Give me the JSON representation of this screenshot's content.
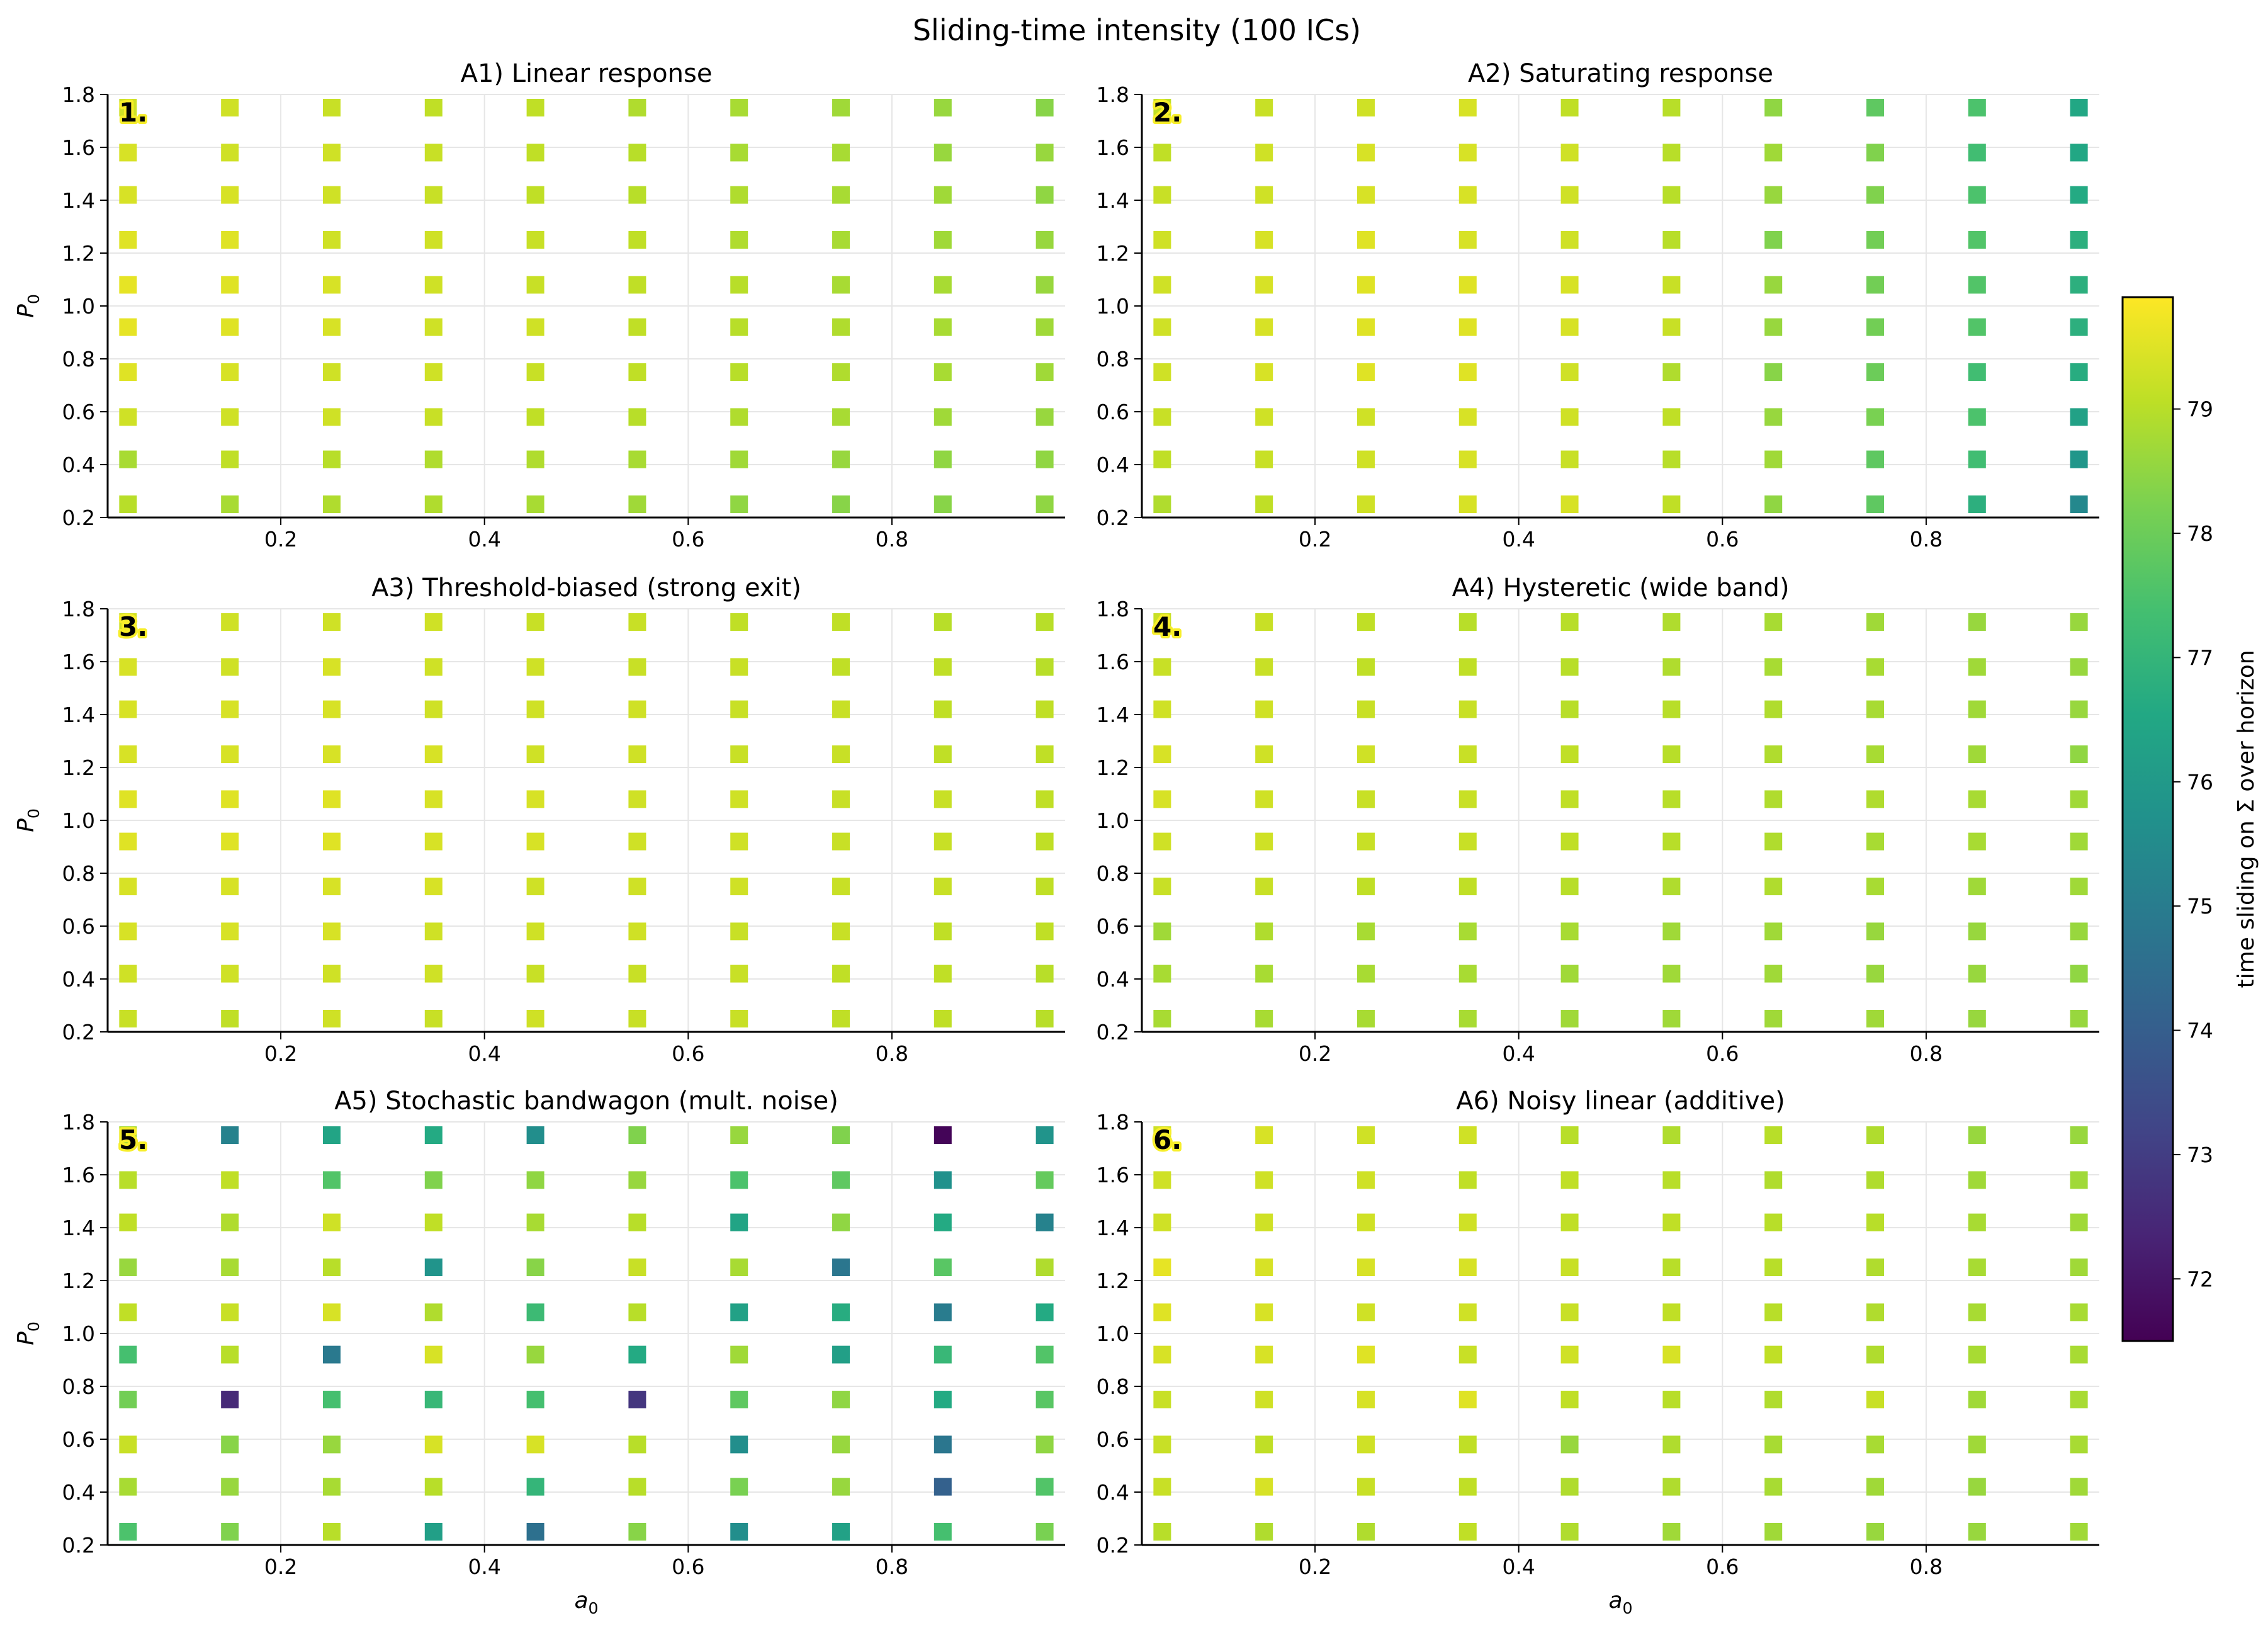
{
  "figure": {
    "suptitle": "Sliding-time intensity (100 ICs)",
    "colorbar": {
      "label": "time sliding on Σ over horizon",
      "range": [
        71.5,
        79.9
      ],
      "ticks": [
        "72",
        "73",
        "74",
        "75",
        "76",
        "77",
        "78",
        "79"
      ],
      "colormap": "viridis"
    }
  },
  "chart_data": [
    {
      "type": "scatter",
      "panel_tag": "1.",
      "title": "A1) Linear response",
      "xlabel": "",
      "ylabel": "P₀",
      "xlim": [
        0.03,
        0.97
      ],
      "ylim": [
        0.2,
        1.8
      ],
      "xticks": [
        "0.2",
        "0.4",
        "0.6",
        "0.8"
      ],
      "yticks": [
        "0.2",
        "0.4",
        "0.6",
        "0.8",
        "1.0",
        "1.2",
        "1.4",
        "1.6",
        "1.8"
      ],
      "grid": true,
      "x": [
        0.05,
        0.15,
        0.25,
        0.35,
        0.45,
        0.55,
        0.65,
        0.75,
        0.85,
        0.95
      ],
      "y": [
        0.25,
        0.42,
        0.58,
        0.75,
        0.92,
        1.08,
        1.25,
        1.42,
        1.58,
        1.75
      ],
      "values": [
        [
          79.0,
          78.8,
          78.9,
          78.9,
          78.8,
          78.7,
          78.5,
          78.4,
          78.4,
          78.5
        ],
        [
          78.8,
          79.1,
          79.0,
          78.9,
          78.9,
          78.8,
          78.7,
          78.6,
          78.5,
          78.5
        ],
        [
          79.3,
          79.3,
          79.3,
          79.2,
          79.1,
          79.0,
          78.9,
          78.8,
          78.7,
          78.6
        ],
        [
          79.5,
          79.4,
          79.3,
          79.3,
          79.2,
          79.1,
          79.0,
          78.9,
          78.8,
          78.7
        ],
        [
          79.6,
          79.5,
          79.4,
          79.3,
          79.3,
          79.1,
          79.0,
          78.9,
          78.8,
          78.7
        ],
        [
          79.6,
          79.5,
          79.4,
          79.3,
          79.2,
          79.1,
          79.0,
          78.8,
          78.8,
          78.6
        ],
        [
          79.5,
          79.5,
          79.3,
          79.3,
          79.2,
          79.1,
          78.9,
          78.8,
          78.7,
          78.6
        ],
        [
          79.4,
          79.4,
          79.3,
          79.2,
          79.1,
          79.0,
          78.9,
          78.8,
          78.7,
          78.5
        ],
        [
          79.4,
          79.3,
          79.3,
          79.2,
          79.1,
          79.0,
          78.8,
          78.8,
          78.6,
          78.6
        ],
        [
          79.3,
          79.3,
          79.2,
          79.1,
          79.1,
          78.9,
          78.8,
          78.7,
          78.6,
          78.4
        ]
      ]
    },
    {
      "type": "scatter",
      "panel_tag": "2.",
      "title": "A2) Saturating response",
      "xlabel": "",
      "ylabel": "",
      "xlim": [
        0.03,
        0.97
      ],
      "ylim": [
        0.2,
        1.8
      ],
      "xticks": [
        "0.2",
        "0.4",
        "0.6",
        "0.8"
      ],
      "yticks": [
        "0.2",
        "0.4",
        "0.6",
        "0.8",
        "1.0",
        "1.2",
        "1.4",
        "1.6",
        "1.8"
      ],
      "grid": true,
      "x": [
        0.05,
        0.15,
        0.25,
        0.35,
        0.45,
        0.55,
        0.65,
        0.75,
        0.85,
        0.95
      ],
      "y": [
        0.25,
        0.42,
        0.58,
        0.75,
        0.92,
        1.08,
        1.25,
        1.42,
        1.58,
        1.75
      ],
      "values": [
        [
          78.9,
          79.1,
          79.3,
          79.4,
          79.4,
          79.1,
          78.5,
          77.8,
          76.8,
          75.4
        ],
        [
          79.1,
          79.2,
          79.3,
          79.4,
          79.2,
          79.0,
          78.7,
          77.8,
          77.3,
          75.9
        ],
        [
          79.2,
          79.3,
          79.3,
          79.4,
          79.3,
          79.1,
          78.6,
          78.2,
          77.5,
          76.3
        ],
        [
          79.3,
          79.4,
          79.5,
          79.5,
          79.3,
          78.9,
          78.4,
          78.0,
          77.3,
          76.7
        ],
        [
          79.3,
          79.4,
          79.5,
          79.5,
          79.4,
          79.2,
          78.6,
          78.1,
          77.6,
          76.8
        ],
        [
          79.3,
          79.4,
          79.5,
          79.5,
          79.4,
          79.2,
          78.6,
          78.1,
          77.6,
          76.8
        ],
        [
          79.3,
          79.4,
          79.5,
          79.4,
          79.3,
          79.0,
          78.3,
          78.1,
          77.6,
          76.8
        ],
        [
          79.2,
          79.3,
          79.4,
          79.4,
          79.3,
          79.0,
          78.6,
          78.3,
          77.5,
          76.6
        ],
        [
          79.1,
          79.3,
          79.4,
          79.4,
          79.3,
          79.0,
          78.7,
          78.3,
          77.3,
          76.5
        ],
        [
          79.1,
          79.2,
          79.3,
          79.4,
          79.1,
          79.0,
          78.5,
          77.8,
          77.5,
          76.5
        ]
      ]
    },
    {
      "type": "scatter",
      "panel_tag": "3.",
      "title": "A3) Threshold-biased (strong exit)",
      "xlabel": "",
      "ylabel": "P₀",
      "xlim": [
        0.03,
        0.97
      ],
      "ylim": [
        0.2,
        1.8
      ],
      "xticks": [
        "0.2",
        "0.4",
        "0.6",
        "0.8"
      ],
      "yticks": [
        "0.2",
        "0.4",
        "0.6",
        "0.8",
        "1.0",
        "1.2",
        "1.4",
        "1.6",
        "1.8"
      ],
      "grid": true,
      "x": [
        0.05,
        0.15,
        0.25,
        0.35,
        0.45,
        0.55,
        0.65,
        0.75,
        0.85,
        0.95
      ],
      "y": [
        0.25,
        0.42,
        0.58,
        0.75,
        0.92,
        1.08,
        1.25,
        1.42,
        1.58,
        1.75
      ],
      "values": [
        [
          79.2,
          79.1,
          79.3,
          79.2,
          79.3,
          79.2,
          79.2,
          79.1,
          79.1,
          79.0
        ],
        [
          79.3,
          79.3,
          79.3,
          79.3,
          79.2,
          79.2,
          79.2,
          79.1,
          79.1,
          79.0
        ],
        [
          79.4,
          79.4,
          79.4,
          79.3,
          79.3,
          79.3,
          79.2,
          79.2,
          79.1,
          79.1
        ],
        [
          79.4,
          79.4,
          79.4,
          79.4,
          79.3,
          79.3,
          79.3,
          79.2,
          79.2,
          79.1
        ],
        [
          79.5,
          79.5,
          79.5,
          79.4,
          79.4,
          79.3,
          79.3,
          79.2,
          79.2,
          79.1
        ],
        [
          79.5,
          79.5,
          79.5,
          79.4,
          79.4,
          79.3,
          79.3,
          79.2,
          79.2,
          79.1
        ],
        [
          79.4,
          79.4,
          79.4,
          79.4,
          79.3,
          79.3,
          79.2,
          79.2,
          79.1,
          79.1
        ],
        [
          79.4,
          79.4,
          79.4,
          79.3,
          79.3,
          79.3,
          79.2,
          79.2,
          79.1,
          79.1
        ],
        [
          79.4,
          79.3,
          79.4,
          79.3,
          79.3,
          79.2,
          79.2,
          79.1,
          79.1,
          79.0
        ],
        [
          79.3,
          79.3,
          79.3,
          79.3,
          79.2,
          79.2,
          79.1,
          79.1,
          79.0,
          79.0
        ]
      ]
    },
    {
      "type": "scatter",
      "panel_tag": "4.",
      "title": "A4) Hysteretic (wide band)",
      "xlabel": "",
      "ylabel": "",
      "xlim": [
        0.03,
        0.97
      ],
      "ylim": [
        0.2,
        1.8
      ],
      "xticks": [
        "0.2",
        "0.4",
        "0.6",
        "0.8"
      ],
      "yticks": [
        "0.2",
        "0.4",
        "0.6",
        "0.8",
        "1.0",
        "1.2",
        "1.4",
        "1.6",
        "1.8"
      ],
      "grid": true,
      "x": [
        0.05,
        0.15,
        0.25,
        0.35,
        0.45,
        0.55,
        0.65,
        0.75,
        0.85,
        0.95
      ],
      "y": [
        0.25,
        0.42,
        0.58,
        0.75,
        0.92,
        1.08,
        1.25,
        1.42,
        1.58,
        1.75
      ],
      "values": [
        [
          78.8,
          78.8,
          78.8,
          78.8,
          78.7,
          78.7,
          78.7,
          78.7,
          78.6,
          78.6
        ],
        [
          78.8,
          78.8,
          78.8,
          78.8,
          78.7,
          78.7,
          78.7,
          78.6,
          78.6,
          78.5
        ],
        [
          78.7,
          78.9,
          78.8,
          78.8,
          78.8,
          78.7,
          78.7,
          78.6,
          78.6,
          78.6
        ],
        [
          79.2,
          79.2,
          79.1,
          79.1,
          79.0,
          78.9,
          78.9,
          78.8,
          78.7,
          78.7
        ],
        [
          79.3,
          79.3,
          79.2,
          79.2,
          79.1,
          79.0,
          78.9,
          78.8,
          78.8,
          78.7
        ],
        [
          79.4,
          79.3,
          79.2,
          79.2,
          79.1,
          79.0,
          78.9,
          78.9,
          78.8,
          78.7
        ],
        [
          79.4,
          79.3,
          79.3,
          79.2,
          79.1,
          79.0,
          78.9,
          78.8,
          78.7,
          78.5
        ],
        [
          79.3,
          79.3,
          79.2,
          79.2,
          79.0,
          79.0,
          78.9,
          78.8,
          78.7,
          78.6
        ],
        [
          79.2,
          79.2,
          79.1,
          79.1,
          79.0,
          78.9,
          78.8,
          78.8,
          78.7,
          78.6
        ],
        [
          79.2,
          79.2,
          79.1,
          79.0,
          79.0,
          78.9,
          78.8,
          78.7,
          78.6,
          78.6
        ]
      ]
    },
    {
      "type": "scatter",
      "panel_tag": "5.",
      "title": "A5) Stochastic bandwagon (mult. noise)",
      "xlabel": "a₀",
      "ylabel": "P₀",
      "xlim": [
        0.03,
        0.97
      ],
      "ylim": [
        0.2,
        1.8
      ],
      "xticks": [
        "0.2",
        "0.4",
        "0.6",
        "0.8"
      ],
      "yticks": [
        "0.2",
        "0.4",
        "0.6",
        "0.8",
        "1.0",
        "1.2",
        "1.4",
        "1.6",
        "1.8"
      ],
      "grid": true,
      "x": [
        0.05,
        0.15,
        0.25,
        0.35,
        0.45,
        0.55,
        0.65,
        0.75,
        0.85,
        0.95
      ],
      "y": [
        0.25,
        0.42,
        0.58,
        0.75,
        0.92,
        1.08,
        1.25,
        1.42,
        1.58,
        1.75
      ],
      "values": [
        [
          77.5,
          78.3,
          79.0,
          76.2,
          74.6,
          78.4,
          75.6,
          76.3,
          77.4,
          78.2
        ],
        [
          78.8,
          78.6,
          78.8,
          79.0,
          77.0,
          79.0,
          78.2,
          78.6,
          74.1,
          77.6
        ],
        [
          79.2,
          78.4,
          78.6,
          79.4,
          79.4,
          79.0,
          75.6,
          78.6,
          74.8,
          78.5
        ],
        [
          78.1,
          72.5,
          77.4,
          77.1,
          77.4,
          72.8,
          77.8,
          78.5,
          76.6,
          77.7
        ],
        [
          77.4,
          79.0,
          74.9,
          79.4,
          78.6,
          76.6,
          78.7,
          76.2,
          77.1,
          77.6
        ],
        [
          79.1,
          79.2,
          79.4,
          78.9,
          77.2,
          79.0,
          76.3,
          76.7,
          75.0,
          76.6
        ],
        [
          78.6,
          78.8,
          79.0,
          75.8,
          78.4,
          79.2,
          78.8,
          74.8,
          77.7,
          78.9
        ],
        [
          79.1,
          78.9,
          79.3,
          79.1,
          78.8,
          79.0,
          76.4,
          78.5,
          76.6,
          75.2
        ],
        [
          79.0,
          79.1,
          77.6,
          78.3,
          78.5,
          78.6,
          77.5,
          77.8,
          75.7,
          77.9
        ],
        [
          78.8,
          75.2,
          76.4,
          76.6,
          75.6,
          78.3,
          78.6,
          78.3,
          71.6,
          75.8
        ]
      ]
    },
    {
      "type": "scatter",
      "panel_tag": "6.",
      "title": "A6) Noisy linear (additive)",
      "xlabel": "a₀",
      "ylabel": "",
      "xlim": [
        0.03,
        0.97
      ],
      "ylim": [
        0.2,
        1.8
      ],
      "xticks": [
        "0.2",
        "0.4",
        "0.6",
        "0.8"
      ],
      "yticks": [
        "0.2",
        "0.4",
        "0.6",
        "0.8",
        "1.0",
        "1.2",
        "1.4",
        "1.6",
        "1.8"
      ],
      "grid": true,
      "x": [
        0.05,
        0.15,
        0.25,
        0.35,
        0.45,
        0.55,
        0.65,
        0.75,
        0.85,
        0.95
      ],
      "y": [
        0.25,
        0.42,
        0.58,
        0.75,
        0.92,
        1.08,
        1.25,
        1.42,
        1.58,
        1.75
      ],
      "values": [
        [
          79.0,
          78.9,
          78.9,
          79.1,
          78.9,
          78.7,
          78.7,
          78.6,
          78.6,
          78.7
        ],
        [
          79.2,
          79.4,
          79.2,
          79.1,
          78.9,
          78.9,
          78.8,
          78.7,
          78.6,
          78.7
        ],
        [
          79.2,
          79.1,
          79.3,
          79.1,
          78.6,
          78.9,
          78.8,
          78.8,
          78.7,
          78.8
        ],
        [
          79.2,
          79.3,
          79.4,
          79.5,
          79.1,
          79.0,
          78.9,
          79.2,
          78.7,
          78.8
        ],
        [
          79.4,
          79.4,
          79.5,
          79.2,
          79.3,
          79.4,
          79.1,
          78.9,
          78.8,
          78.8
        ],
        [
          79.5,
          79.4,
          79.3,
          79.3,
          79.2,
          79.1,
          79.0,
          78.9,
          78.8,
          78.8
        ],
        [
          79.6,
          79.4,
          79.4,
          79.4,
          79.2,
          79.0,
          79.0,
          78.9,
          78.8,
          78.7
        ],
        [
          79.3,
          79.3,
          79.3,
          79.3,
          79.1,
          79.1,
          79.0,
          79.0,
          78.8,
          78.7
        ],
        [
          79.3,
          79.3,
          79.3,
          79.1,
          79.1,
          79.0,
          78.9,
          78.9,
          78.7,
          78.7
        ],
        [
          79.3,
          79.4,
          79.3,
          79.3,
          79.0,
          78.9,
          79.0,
          78.9,
          78.6,
          78.6
        ]
      ]
    }
  ]
}
